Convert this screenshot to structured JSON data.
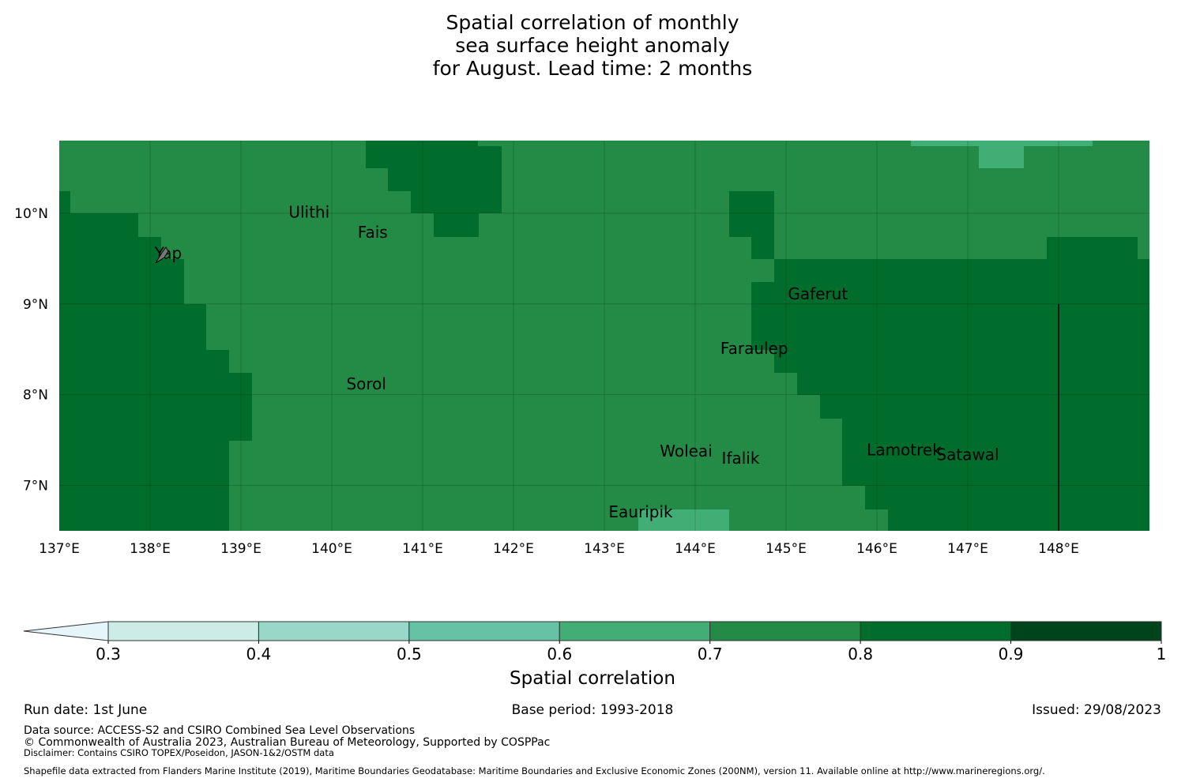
{
  "title": {
    "line1": "Spatial correlation of monthly",
    "line2": "sea surface height anomaly",
    "line3": "for August. Lead time: 2 months"
  },
  "map": {
    "lon_range": [
      137,
      149
    ],
    "lat_range": [
      6.5,
      10.8
    ],
    "lon_ticks": [
      "137°E",
      "138°E",
      "139°E",
      "140°E",
      "141°E",
      "142°E",
      "143°E",
      "144°E",
      "145°E",
      "146°E",
      "147°E",
      "148°E"
    ],
    "lat_ticks": [
      "10°N",
      "9°N",
      "8°N",
      "7°N"
    ],
    "base_color": "#238b45",
    "places": [
      {
        "name": "Ulithi",
        "lon": 139.75,
        "lat": 9.95
      },
      {
        "name": "Fais",
        "lon": 140.45,
        "lat": 9.73
      },
      {
        "name": "Yap",
        "lon": 138.2,
        "lat": 9.5
      },
      {
        "name": "Gaferut",
        "lon": 145.35,
        "lat": 9.05
      },
      {
        "name": "Faraulep",
        "lon": 144.65,
        "lat": 8.45
      },
      {
        "name": "Sorol",
        "lon": 140.38,
        "lat": 8.06
      },
      {
        "name": "Woleai",
        "lon": 143.9,
        "lat": 7.32
      },
      {
        "name": "Ifalik",
        "lon": 144.5,
        "lat": 7.24
      },
      {
        "name": "Lamotrek",
        "lon": 146.3,
        "lat": 7.33
      },
      {
        "name": "Satawal",
        "lon": 147.0,
        "lat": 7.28
      },
      {
        "name": "Eauripik",
        "lon": 143.4,
        "lat": 6.65
      }
    ]
  },
  "colorbar": {
    "ticks": [
      "0.3",
      "0.4",
      "0.5",
      "0.6",
      "0.7",
      "0.8",
      "0.9",
      "1"
    ],
    "colors": [
      "#ccece6",
      "#99d8c9",
      "#66c2a4",
      "#41ae76",
      "#238b45",
      "#006d2c",
      "#00441b"
    ],
    "extend_color": "#e5f5f9",
    "label": "Spatial correlation"
  },
  "footer": {
    "run_date": "Run date: 1st June",
    "base_period": "Base period: 1993-2018",
    "issued": "Issued: 29/08/2023",
    "data_source": "Data source: ACCESS-S2 and CSIRO Combined Sea Level Observations",
    "copyright": "© Commonwealth of Australia 2023, Australian Bureau of Meteorology, Supported by COSPPac",
    "disclaimer": "Disclaimer: Contains CSIRO TOPEX/Poseidon, JASON-1&2/OSTM data",
    "shapefile": "Shapefile data extracted from Flanders Marine Institute (2019), Maritime Boundaries Geodatabase: Maritime Boundaries and Exclusive Economic Zones (200NM), version 11. Available online at http://www.marineregions.org/."
  }
}
